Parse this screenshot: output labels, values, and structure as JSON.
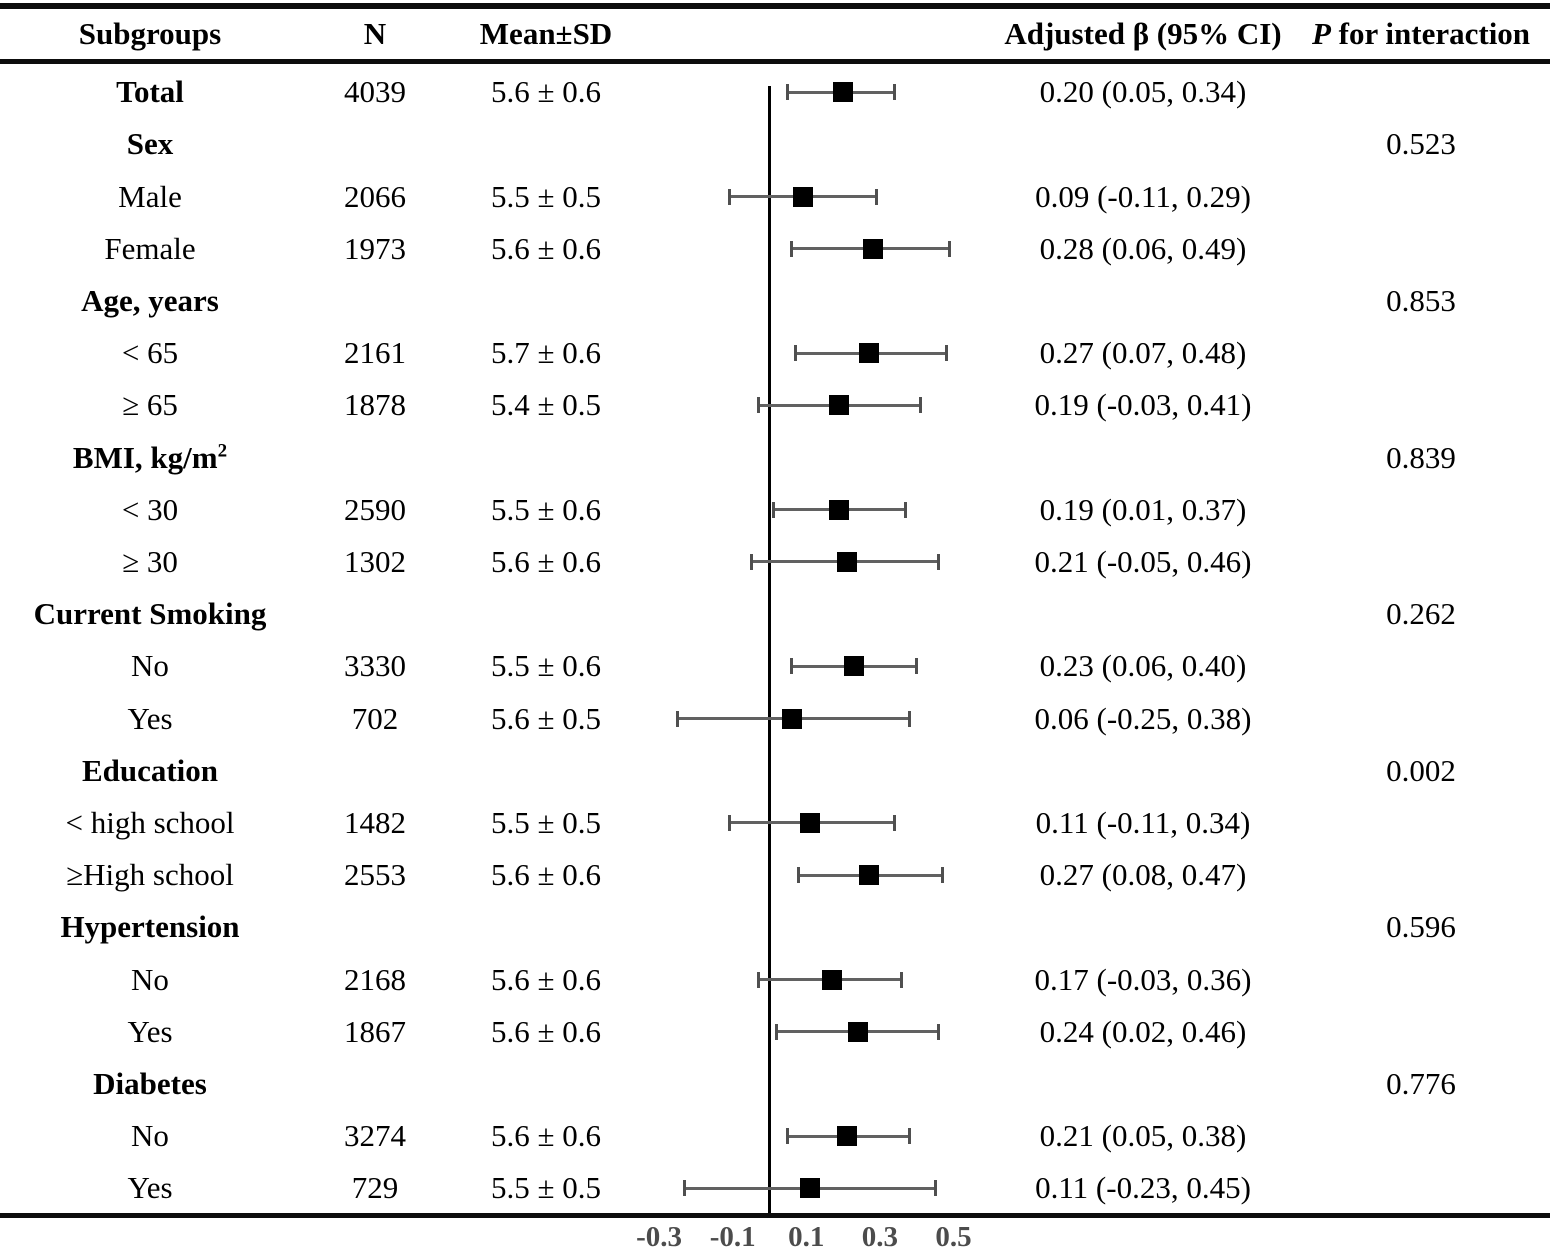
{
  "header": {
    "subgroups": "Subgroups",
    "n": "N",
    "mean_sd": "Mean±SD",
    "beta": "Adjusted β (95% CI)",
    "p_italic": "P",
    "p_rest": " for interaction"
  },
  "table": {
    "rows": [
      {
        "label": "Total",
        "bold": true,
        "n": "4039",
        "mean": "5.6 ± 0.6",
        "beta": "0.20 (0.05, 0.34)"
      },
      {
        "label": "Sex",
        "bold": true,
        "p": "0.523"
      },
      {
        "label": "Male",
        "n": "2066",
        "mean": "5.5 ± 0.5",
        "beta": "0.09 (-0.11, 0.29)"
      },
      {
        "label": "Female",
        "n": "1973",
        "mean": "5.6 ± 0.6",
        "beta": "0.28 (0.06, 0.49)"
      },
      {
        "label": "Age, years",
        "bold": true,
        "p": "0.853"
      },
      {
        "label": "< 65",
        "n": "2161",
        "mean": "5.7 ± 0.6",
        "beta": "0.27 (0.07, 0.48)"
      },
      {
        "label": "≥ 65",
        "n": "1878",
        "mean": "5.4 ± 0.5",
        "beta": "0.19 (-0.03, 0.41)"
      },
      {
        "label": "BMI, kg/m",
        "sup": "2",
        "bold": true,
        "p": "0.839"
      },
      {
        "label": "< 30",
        "n": "2590",
        "mean": "5.5 ± 0.6",
        "beta": "0.19 (0.01, 0.37)"
      },
      {
        "label": "≥ 30",
        "n": "1302",
        "mean": "5.6 ± 0.6",
        "beta": "0.21 (-0.05, 0.46)"
      },
      {
        "label": "Current Smoking",
        "bold": true,
        "p": "0.262"
      },
      {
        "label": "No",
        "n": "3330",
        "mean": "5.5 ± 0.6",
        "beta": "0.23 (0.06, 0.40)"
      },
      {
        "label": "Yes",
        "n": "702",
        "mean": "5.6 ± 0.5",
        "beta": "0.06 (-0.25, 0.38)"
      },
      {
        "label": "Education",
        "bold": true,
        "p": "0.002"
      },
      {
        "label": "< high school",
        "n": "1482",
        "mean": "5.5 ± 0.5",
        "beta": "0.11 (-0.11, 0.34)"
      },
      {
        "label": "≥High school",
        "n": "2553",
        "mean": "5.6 ± 0.6",
        "beta": "0.27 (0.08, 0.47)"
      },
      {
        "label": "Hypertension",
        "bold": true,
        "p": "0.596"
      },
      {
        "label": "No",
        "n": "2168",
        "mean": "5.6 ± 0.6",
        "beta": "0.17 (-0.03, 0.36)"
      },
      {
        "label": "Yes",
        "n": "1867",
        "mean": "5.6 ± 0.6",
        "beta": "0.24 (0.02, 0.46)"
      },
      {
        "label": "Diabetes",
        "bold": true,
        "p": "0.776"
      },
      {
        "label": "No",
        "n": "3274",
        "mean": "5.6 ± 0.6",
        "beta": "0.21 (0.05, 0.38)"
      },
      {
        "label": "Yes",
        "n": "729",
        "mean": "5.5 ± 0.5",
        "beta": "0.11 (-0.23, 0.45)"
      }
    ]
  },
  "chart_data": {
    "type": "forest",
    "xlabel": "Adjusted β (95% CI)",
    "x_ticks": [
      -0.3,
      -0.1,
      0.1,
      0.3,
      0.5
    ],
    "x_tick_labels": [
      "-0.3",
      "-0.1",
      "0.1",
      "0.3",
      "0.5"
    ],
    "xlim": [
      -0.42,
      0.62
    ],
    "reference_line": 0,
    "points": [
      {
        "row": 0,
        "group": "Total",
        "subgroup": "Total",
        "n": 4039,
        "mean_sd": "5.6 ± 0.6",
        "beta": 0.2,
        "ci": [
          0.05,
          0.34
        ]
      },
      {
        "row": 2,
        "group": "Sex",
        "subgroup": "Male",
        "n": 2066,
        "mean_sd": "5.5 ± 0.5",
        "beta": 0.09,
        "ci": [
          -0.11,
          0.29
        ]
      },
      {
        "row": 3,
        "group": "Sex",
        "subgroup": "Female",
        "n": 1973,
        "mean_sd": "5.6 ± 0.6",
        "beta": 0.28,
        "ci": [
          0.06,
          0.49
        ]
      },
      {
        "row": 5,
        "group": "Age, years",
        "subgroup": "< 65",
        "n": 2161,
        "mean_sd": "5.7 ± 0.6",
        "beta": 0.27,
        "ci": [
          0.07,
          0.48
        ]
      },
      {
        "row": 6,
        "group": "Age, years",
        "subgroup": "≥ 65",
        "n": 1878,
        "mean_sd": "5.4 ± 0.5",
        "beta": 0.19,
        "ci": [
          -0.03,
          0.41
        ]
      },
      {
        "row": 8,
        "group": "BMI, kg/m2",
        "subgroup": "< 30",
        "n": 2590,
        "mean_sd": "5.5 ± 0.6",
        "beta": 0.19,
        "ci": [
          0.01,
          0.37
        ]
      },
      {
        "row": 9,
        "group": "BMI, kg/m2",
        "subgroup": "≥ 30",
        "n": 1302,
        "mean_sd": "5.6 ± 0.6",
        "beta": 0.21,
        "ci": [
          -0.05,
          0.46
        ]
      },
      {
        "row": 11,
        "group": "Current Smoking",
        "subgroup": "No",
        "n": 3330,
        "mean_sd": "5.5 ± 0.6",
        "beta": 0.23,
        "ci": [
          0.06,
          0.4
        ]
      },
      {
        "row": 12,
        "group": "Current Smoking",
        "subgroup": "Yes",
        "n": 702,
        "mean_sd": "5.6 ± 0.5",
        "beta": 0.06,
        "ci": [
          -0.25,
          0.38
        ]
      },
      {
        "row": 14,
        "group": "Education",
        "subgroup": "< high school",
        "n": 1482,
        "mean_sd": "5.5 ± 0.5",
        "beta": 0.11,
        "ci": [
          -0.11,
          0.34
        ]
      },
      {
        "row": 15,
        "group": "Education",
        "subgroup": "≥High school",
        "n": 2553,
        "mean_sd": "5.6 ± 0.6",
        "beta": 0.27,
        "ci": [
          0.08,
          0.47
        ]
      },
      {
        "row": 17,
        "group": "Hypertension",
        "subgroup": "No",
        "n": 2168,
        "mean_sd": "5.6 ± 0.6",
        "beta": 0.17,
        "ci": [
          -0.03,
          0.36
        ]
      },
      {
        "row": 18,
        "group": "Hypertension",
        "subgroup": "Yes",
        "n": 1867,
        "mean_sd": "5.6 ± 0.6",
        "beta": 0.24,
        "ci": [
          0.02,
          0.46
        ]
      },
      {
        "row": 20,
        "group": "Diabetes",
        "subgroup": "No",
        "n": 3274,
        "mean_sd": "5.6 ± 0.6",
        "beta": 0.21,
        "ci": [
          0.05,
          0.38
        ]
      },
      {
        "row": 21,
        "group": "Diabetes",
        "subgroup": "Yes",
        "n": 729,
        "mean_sd": "5.5 ± 0.5",
        "beta": 0.11,
        "ci": [
          -0.23,
          0.45
        ]
      }
    ],
    "p_for_interaction": {
      "Sex": 0.523,
      "Age, years": 0.853,
      "BMI, kg/m2": 0.839,
      "Current Smoking": 0.262,
      "Education": 0.002,
      "Hypertension": 0.596,
      "Diabetes": 0.776
    }
  }
}
